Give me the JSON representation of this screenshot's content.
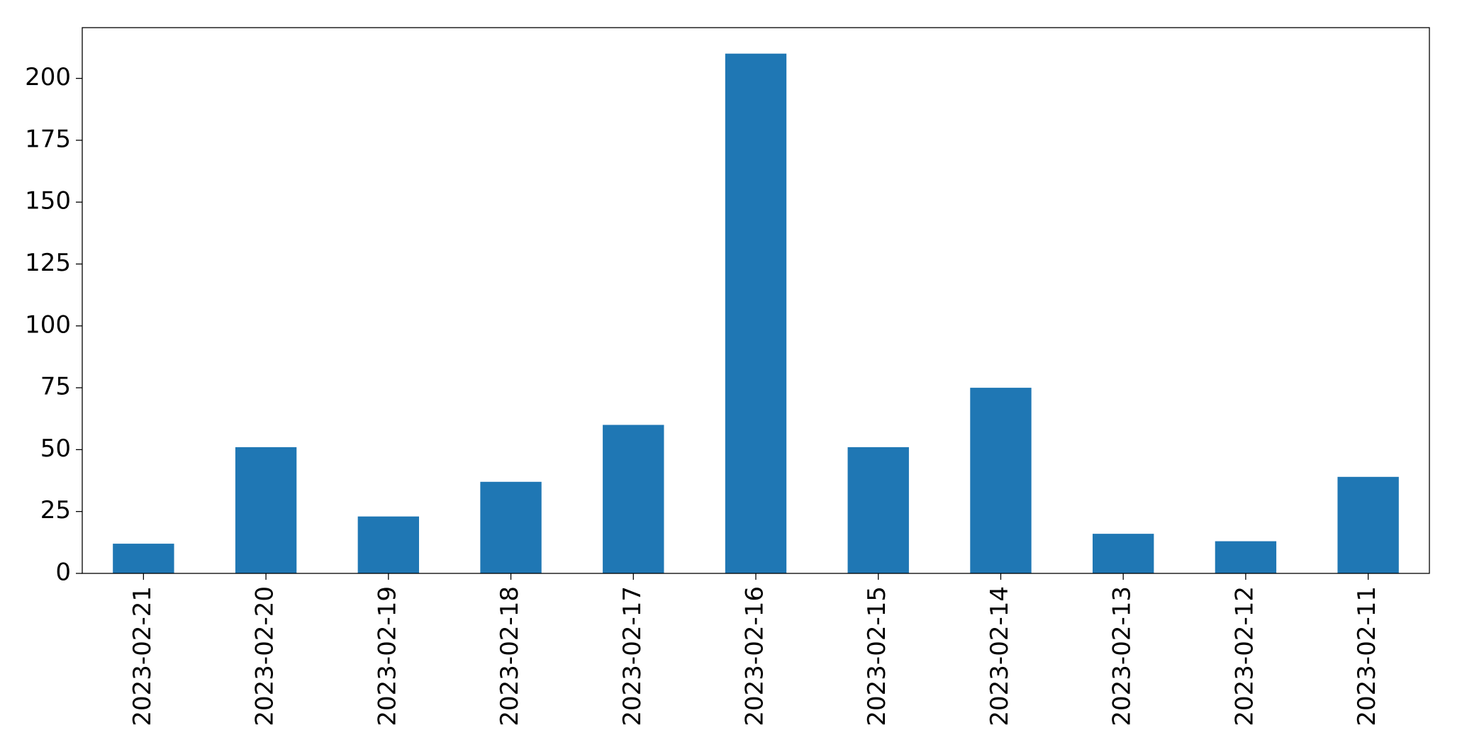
{
  "chart_data": {
    "type": "bar",
    "categories": [
      "2023-02-21",
      "2023-02-20",
      "2023-02-19",
      "2023-02-18",
      "2023-02-17",
      "2023-02-16",
      "2023-02-15",
      "2023-02-14",
      "2023-02-13",
      "2023-02-12",
      "2023-02-11"
    ],
    "values": [
      12,
      51,
      23,
      37,
      60,
      210,
      51,
      75,
      16,
      13,
      39
    ],
    "color": "#1f77b4",
    "ylim": [
      0,
      220.5
    ],
    "yticks": [
      0,
      25,
      50,
      75,
      100,
      125,
      150,
      175,
      200
    ],
    "grid": false
  }
}
